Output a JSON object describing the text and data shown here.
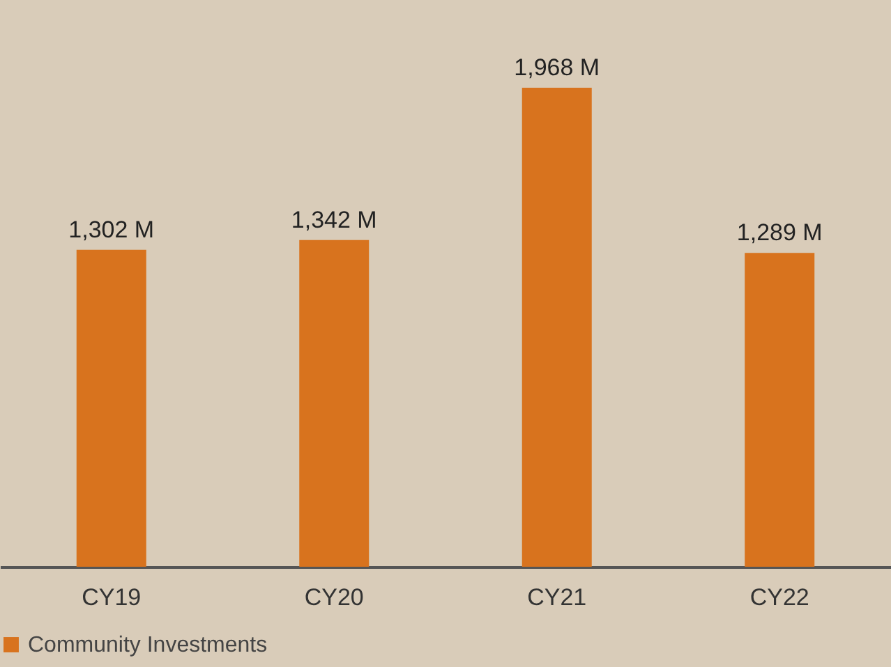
{
  "chart_data": {
    "type": "bar",
    "categories": [
      "CY19",
      "CY20",
      "CY21",
      "CY22"
    ],
    "series": [
      {
        "name": "Community Investments",
        "color": "#d8731e",
        "values": [
          1302,
          1342,
          1968,
          1289
        ],
        "value_labels": [
          "1,302 M",
          "1,342 M",
          "1,968 M",
          "1,289 M"
        ]
      }
    ],
    "legend": "bottom",
    "grid": false
  }
}
